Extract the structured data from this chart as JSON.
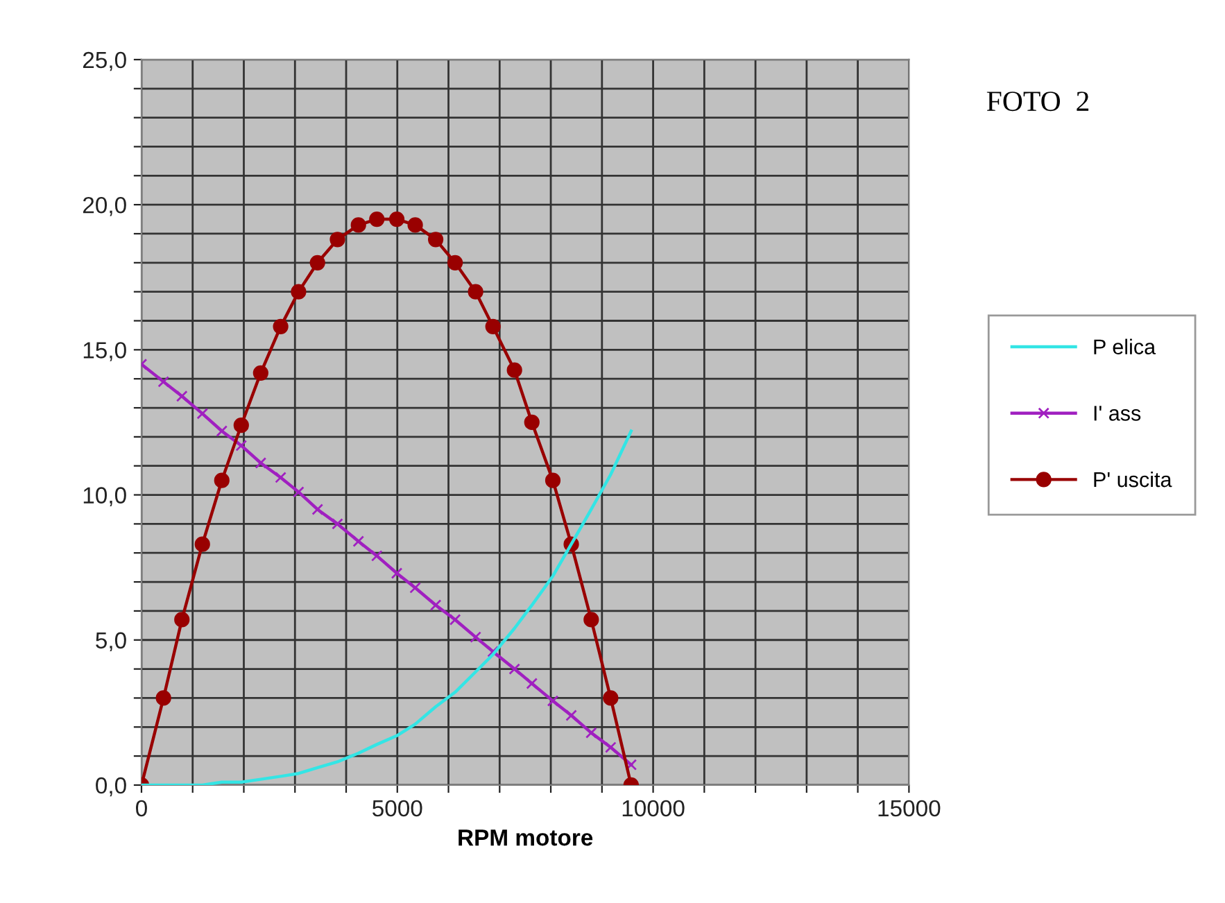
{
  "chart_data": {
    "type": "line",
    "xlabel": "RPM motore",
    "annotations": [
      "FOTO  2"
    ],
    "x": [
      0,
      430,
      790,
      1190,
      1570,
      1950,
      2330,
      2720,
      3070,
      3440,
      3830,
      4240,
      4600,
      4990,
      5350,
      5750,
      6130,
      6530,
      6870,
      7290,
      7630,
      8040,
      8400,
      8790,
      9170,
      9570
    ],
    "series": [
      {
        "name": "P elica",
        "color": "#33e5e5",
        "marker": "none",
        "values": [
          0.0,
          0.0,
          0.0,
          0.0,
          0.1,
          0.1,
          0.2,
          0.3,
          0.4,
          0.6,
          0.8,
          1.1,
          1.4,
          1.7,
          2.1,
          2.7,
          3.2,
          3.9,
          4.5,
          5.4,
          6.2,
          7.2,
          8.3,
          9.5,
          10.7,
          12.2
        ]
      },
      {
        "name": "I' ass",
        "color": "#a020c0",
        "marker": "cross",
        "values": [
          14.5,
          13.9,
          13.4,
          12.8,
          12.2,
          11.7,
          11.1,
          10.6,
          10.1,
          9.5,
          9.0,
          8.4,
          7.9,
          7.3,
          6.8,
          6.2,
          5.7,
          5.1,
          4.6,
          4.0,
          3.5,
          2.9,
          2.4,
          1.8,
          1.3,
          0.7
        ]
      },
      {
        "name": "P' uscita",
        "color": "#990000",
        "marker": "circle",
        "values": [
          0.0,
          3.0,
          5.7,
          8.3,
          10.5,
          12.4,
          14.2,
          15.8,
          17.0,
          18.0,
          18.8,
          19.3,
          19.5,
          19.5,
          19.3,
          18.8,
          18.0,
          17.0,
          15.8,
          14.3,
          12.5,
          10.5,
          8.3,
          5.7,
          3.0,
          0.0
        ]
      }
    ],
    "xlim": [
      0,
      15000
    ],
    "xticks": [
      0,
      {
        "value": 1000,
        "label": null
      },
      {
        "value": 2000,
        "label": null
      },
      {
        "value": 3000,
        "label": null
      },
      {
        "value": 4000,
        "label": null
      },
      5000,
      {
        "value": 6000,
        "label": null
      },
      {
        "value": 7000,
        "label": null
      },
      {
        "value": 8000,
        "label": null
      },
      {
        "value": 9000,
        "label": null
      },
      10000,
      {
        "value": 11000,
        "label": null
      },
      {
        "value": 12000,
        "label": null
      },
      {
        "value": 13000,
        "label": null
      },
      {
        "value": 14000,
        "label": null
      },
      15000
    ],
    "ylim": [
      0,
      25
    ],
    "yticks": [
      {
        "value": 0,
        "label": "0,0"
      },
      {
        "value": 1,
        "label": null
      },
      {
        "value": 2,
        "label": null
      },
      {
        "value": 3,
        "label": null
      },
      {
        "value": 4,
        "label": null
      },
      {
        "value": 5,
        "label": "5,0"
      },
      {
        "value": 6,
        "label": null
      },
      {
        "value": 7,
        "label": null
      },
      {
        "value": 8,
        "label": null
      },
      {
        "value": 9,
        "label": null
      },
      {
        "value": 10,
        "label": "10,0"
      },
      {
        "value": 11,
        "label": null
      },
      {
        "value": 12,
        "label": null
      },
      {
        "value": 13,
        "label": null
      },
      {
        "value": 14,
        "label": null
      },
      {
        "value": 15,
        "label": "15,0"
      },
      {
        "value": 16,
        "label": null
      },
      {
        "value": 17,
        "label": null
      },
      {
        "value": 18,
        "label": null
      },
      {
        "value": 19,
        "label": null
      },
      {
        "value": 20,
        "label": "20,0"
      },
      {
        "value": 21,
        "label": null
      },
      {
        "value": 22,
        "label": null
      },
      {
        "value": 23,
        "label": null
      },
      {
        "value": 24,
        "label": null
      },
      {
        "value": 25,
        "label": "25,0"
      }
    ],
    "grid": true,
    "legend": "right",
    "line_style": "solid"
  }
}
